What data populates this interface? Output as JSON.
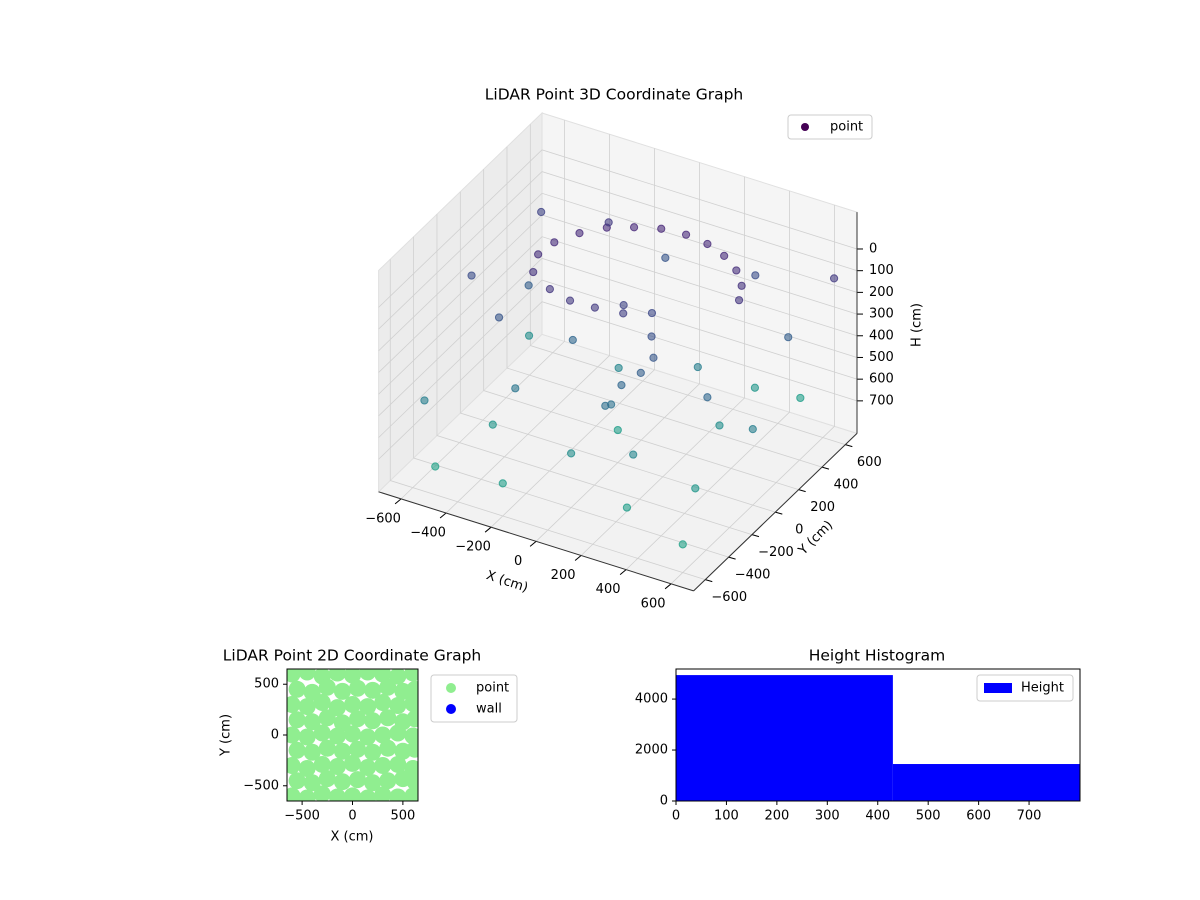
{
  "chart_data": [
    {
      "type": "scatter3d",
      "title": "LiDAR Point 3D Coordinate Graph",
      "xlabel": "X (cm)",
      "ylabel": "Y (cm)",
      "zlabel": "H (cm)",
      "xlim": [
        -700,
        700
      ],
      "ylim": [
        -700,
        700
      ],
      "zlim": [
        850,
        -170
      ],
      "xticks": [
        {
          "value": -600,
          "label": "−600"
        },
        {
          "value": -400,
          "label": "−400"
        },
        {
          "value": -200,
          "label": "−200"
        },
        0,
        200,
        400,
        600
      ],
      "yticks": [
        {
          "value": -600,
          "label": "−600"
        },
        {
          "value": -400,
          "label": "−400"
        },
        {
          "value": -200,
          "label": "−200"
        },
        0,
        200,
        400,
        600
      ],
      "zticks": [
        0,
        100,
        200,
        300,
        400,
        500,
        600,
        700
      ],
      "colormap": "viridis",
      "color_by": "z",
      "legend": "upper right",
      "grid": true,
      "series": [
        {
          "name": "point",
          "color": "#440154",
          "x": [
            -350,
            -380,
            -360,
            -300,
            -220,
            -130,
            -30,
            70,
            170,
            260,
            340,
            400,
            430,
            -250,
            -150,
            -50,
            50,
            0,
            100,
            150,
            200,
            180,
            120,
            100,
            -600,
            -500,
            -400,
            -200,
            0,
            300,
            500,
            600,
            550,
            300,
            -100,
            -600,
            -650,
            -300,
            200,
            400,
            -100,
            100,
            -500,
            600,
            650,
            -300,
            450,
            -450,
            250,
            -200,
            350,
            500,
            -550,
            0
          ],
          "y": [
            -50,
            50,
            150,
            250,
            330,
            390,
            430,
            450,
            440,
            410,
            360,
            290,
            210,
            -100,
            -120,
            -100,
            -50,
            50,
            100,
            0,
            -80,
            -150,
            -200,
            -250,
            -500,
            200,
            -300,
            -600,
            -400,
            -500,
            -300,
            0,
            400,
            600,
            600,
            500,
            0,
            -300,
            300,
            100,
            200,
            -300,
            -600,
            -600,
            600,
            500,
            -100,
            -150,
            -350,
            0,
            500,
            600,
            300,
            0
          ],
          "z": [
            60,
            40,
            30,
            20,
            10,
            10,
            5,
            10,
            15,
            25,
            40,
            55,
            70,
            80,
            90,
            100,
            120,
            150,
            180,
            220,
            260,
            300,
            350,
            420,
            500,
            300,
            650,
            700,
            600,
            700,
            650,
            500,
            300,
            200,
            250,
            150,
            200,
            450,
            500,
            600,
            550,
            400,
            720,
            720,
            100,
            100,
            350,
            250,
            550,
            350,
            650,
            700,
            600,
            700
          ]
        }
      ]
    },
    {
      "type": "scatter",
      "title": "LiDAR Point 2D Coordinate Graph",
      "xlabel": "X (cm)",
      "ylabel": "Y (cm)",
      "xlim": [
        -650,
        650
      ],
      "ylim": [
        -650,
        650
      ],
      "xticks": [
        {
          "value": -500,
          "label": "−500"
        },
        0,
        500
      ],
      "yticks": [
        {
          "value": -500,
          "label": "−500"
        },
        0,
        500
      ],
      "legend": "outside upper right",
      "series": [
        {
          "name": "point",
          "color": "#90ee90",
          "x": [
            -600,
            -450,
            -300,
            -150,
            0,
            150,
            300,
            450,
            600,
            -550,
            -400,
            -250,
            -100,
            50,
            200,
            350,
            500,
            620,
            -600,
            -450,
            -300,
            -150,
            0,
            150,
            300,
            450,
            600,
            -550,
            -400,
            -250,
            -100,
            50,
            200,
            350,
            500,
            620,
            -600,
            -450,
            -300,
            -150,
            0,
            150,
            300,
            450,
            600,
            -550,
            -400,
            -250,
            -100,
            50,
            200,
            350,
            500,
            620,
            -600,
            -450,
            -300,
            -150,
            0,
            150,
            300,
            450,
            600,
            -550,
            -400,
            -250,
            -100,
            50,
            200,
            350,
            500,
            620,
            -600,
            -450,
            -300,
            -150,
            0,
            150,
            300,
            450,
            600
          ],
          "y": [
            600,
            620,
            580,
            610,
            590,
            620,
            600,
            580,
            610,
            450,
            420,
            470,
            430,
            460,
            440,
            470,
            430,
            450,
            300,
            280,
            320,
            270,
            300,
            280,
            320,
            290,
            310,
            150,
            130,
            170,
            120,
            160,
            140,
            170,
            130,
            160,
            0,
            -20,
            20,
            -10,
            10,
            -20,
            0,
            20,
            -10,
            -150,
            -170,
            -130,
            -160,
            -140,
            -170,
            -130,
            -160,
            -140,
            -300,
            -330,
            -290,
            -310,
            -280,
            -320,
            -300,
            -290,
            -330,
            -450,
            -470,
            -430,
            -460,
            -440,
            -470,
            -450,
            -430,
            -460,
            -600,
            -620,
            -580,
            -610,
            -600,
            -620,
            -590,
            -610,
            -600
          ]
        },
        {
          "name": "wall",
          "color": "#0000ff",
          "x": [],
          "y": []
        }
      ]
    },
    {
      "type": "histogram",
      "title": "Height Histogram",
      "name": "Height",
      "color": "#0000ff",
      "bins": [
        0,
        430,
        801
      ],
      "values": [
        4941,
        1451
      ],
      "xlim": [
        0,
        801
      ],
      "ylim": [
        0,
        5180
      ],
      "xticks": [
        0,
        100,
        200,
        300,
        400,
        500,
        600,
        700
      ],
      "yticks": [
        0,
        2000,
        4000
      ],
      "legend": "upper right"
    }
  ]
}
